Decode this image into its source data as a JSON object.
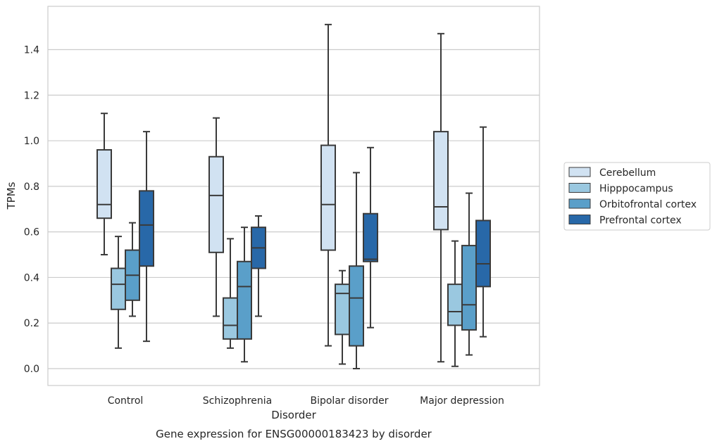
{
  "chart_data": {
    "type": "box",
    "title": "",
    "caption": "Gene expression for ENSG00000183423 by disorder",
    "xlabel": "Disorder",
    "ylabel": "TPMs",
    "ylim": [
      -0.07,
      1.58
    ],
    "yticks": [
      "0.0",
      "0.2",
      "0.4",
      "0.6",
      "0.8",
      "1.0",
      "1.2",
      "1.4"
    ],
    "ytick_values": [
      0.0,
      0.2,
      0.4,
      0.6,
      0.8,
      1.0,
      1.2,
      1.4
    ],
    "grid": true,
    "legend_position": "right",
    "categories": [
      "Control",
      "Schizophrenia",
      "Bipolar disorder",
      "Major depression"
    ],
    "series": [
      {
        "name": "Cerebellum",
        "color": "#d1e2f2",
        "boxes": [
          {
            "whisker_low": 0.5,
            "q1": 0.66,
            "median": 0.72,
            "q3": 0.96,
            "whisker_high": 1.12
          },
          {
            "whisker_low": 0.23,
            "q1": 0.51,
            "median": 0.76,
            "q3": 0.93,
            "whisker_high": 1.1
          },
          {
            "whisker_low": 0.1,
            "q1": 0.52,
            "median": 0.72,
            "q3": 0.98,
            "whisker_high": 1.51
          },
          {
            "whisker_low": 0.03,
            "q1": 0.61,
            "median": 0.71,
            "q3": 1.04,
            "whisker_high": 1.47
          }
        ]
      },
      {
        "name": "Hipppocampus",
        "color": "#9ac8e0",
        "boxes": [
          {
            "whisker_low": 0.09,
            "q1": 0.26,
            "median": 0.37,
            "q3": 0.44,
            "whisker_high": 0.58
          },
          {
            "whisker_low": 0.09,
            "q1": 0.13,
            "median": 0.19,
            "q3": 0.31,
            "whisker_high": 0.57
          },
          {
            "whisker_low": 0.02,
            "q1": 0.15,
            "median": 0.33,
            "q3": 0.37,
            "whisker_high": 0.43
          },
          {
            "whisker_low": 0.01,
            "q1": 0.19,
            "median": 0.25,
            "q3": 0.37,
            "whisker_high": 0.56
          }
        ]
      },
      {
        "name": "Orbitofrontal cortex",
        "color": "#5a9fc9",
        "boxes": [
          {
            "whisker_low": 0.23,
            "q1": 0.3,
            "median": 0.41,
            "q3": 0.52,
            "whisker_high": 0.64
          },
          {
            "whisker_low": 0.03,
            "q1": 0.13,
            "median": 0.36,
            "q3": 0.47,
            "whisker_high": 0.62
          },
          {
            "whisker_low": 0.0,
            "q1": 0.1,
            "median": 0.31,
            "q3": 0.45,
            "whisker_high": 0.86
          },
          {
            "whisker_low": 0.06,
            "q1": 0.17,
            "median": 0.28,
            "q3": 0.54,
            "whisker_high": 0.77
          }
        ]
      },
      {
        "name": "Prefrontal cortex",
        "color": "#2868a8",
        "boxes": [
          {
            "whisker_low": 0.12,
            "q1": 0.45,
            "median": 0.63,
            "q3": 0.78,
            "whisker_high": 1.04
          },
          {
            "whisker_low": 0.23,
            "q1": 0.44,
            "median": 0.53,
            "q3": 0.62,
            "whisker_high": 0.67
          },
          {
            "whisker_low": 0.18,
            "q1": 0.47,
            "median": 0.48,
            "q3": 0.68,
            "whisker_high": 0.97
          },
          {
            "whisker_low": 0.14,
            "q1": 0.36,
            "median": 0.46,
            "q3": 0.65,
            "whisker_high": 1.06
          }
        ]
      }
    ]
  }
}
